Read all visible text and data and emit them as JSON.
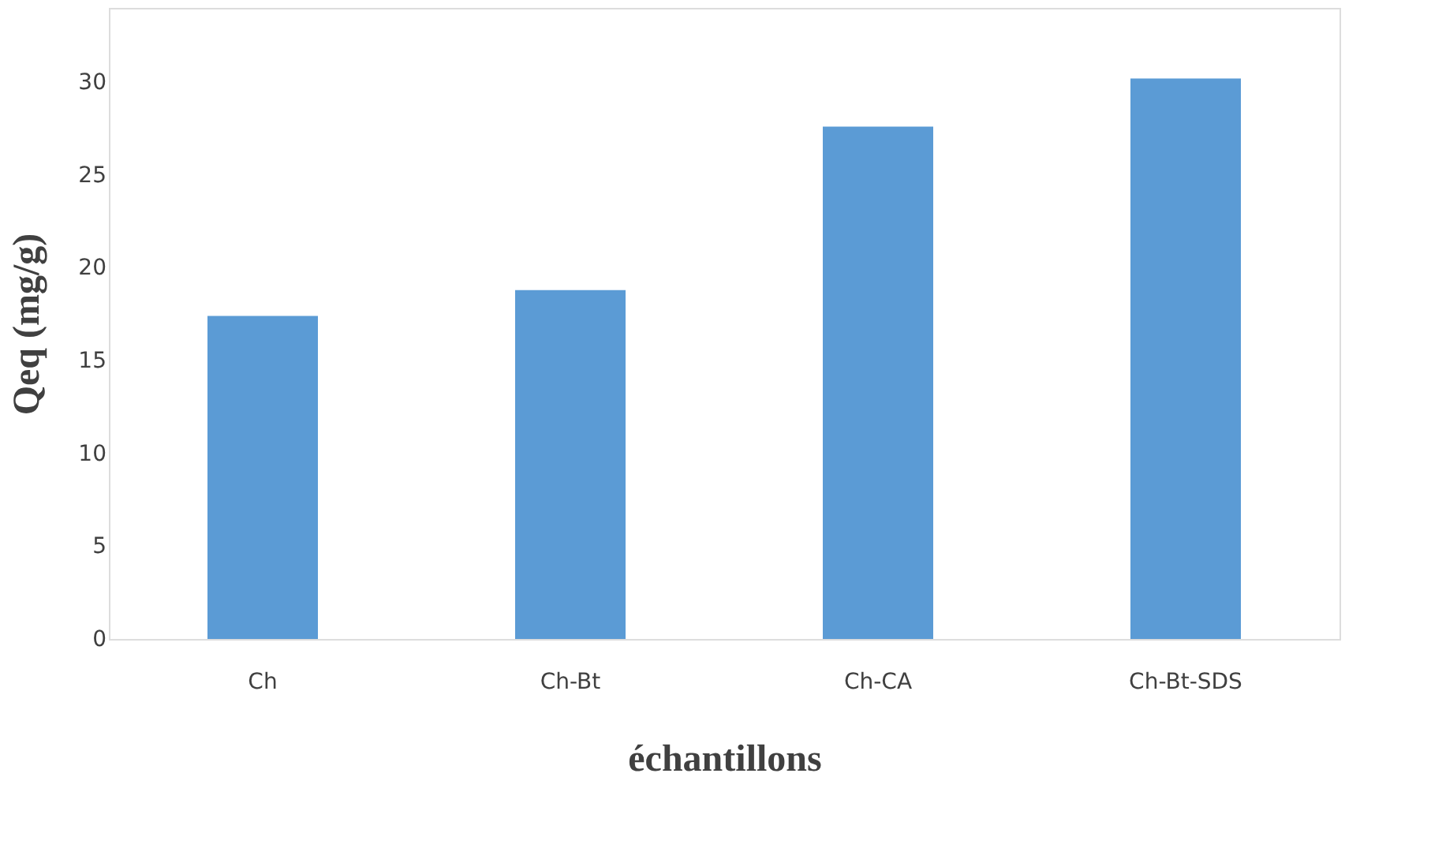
{
  "chart_data": {
    "type": "bar",
    "xlabel": "échantillons",
    "ylabel": "Qeq (mg/g)",
    "categories": [
      "Ch",
      "Ch-Bt",
      "Ch-CA",
      "Ch-Bt-SDS"
    ],
    "values": [
      17.4,
      18.8,
      27.6,
      30.2
    ],
    "color": "#5b9bd5",
    "ylim": [
      0,
      34
    ],
    "yticks": [
      0,
      5,
      10,
      15,
      20,
      25,
      30
    ],
    "grid": false
  }
}
